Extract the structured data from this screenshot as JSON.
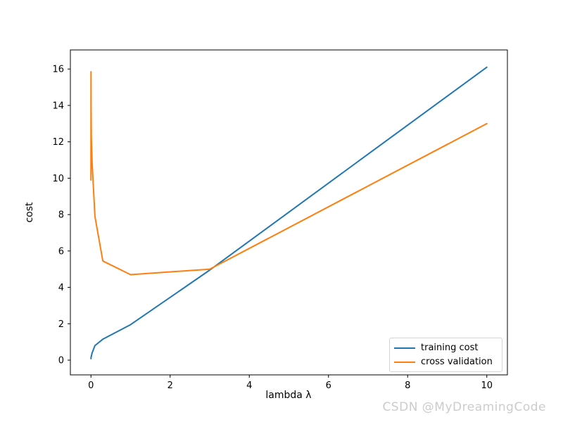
{
  "watermark": {
    "text": "CSDN @MyDreamingCode",
    "color": "#cccccc"
  },
  "chart_data": {
    "type": "line",
    "title": "",
    "xlabel": "lambda λ",
    "ylabel": "cost",
    "x": [
      0,
      0.001,
      0.003,
      0.01,
      0.03,
      0.1,
      0.3,
      1,
      3,
      10
    ],
    "series": [
      {
        "name": "training cost",
        "color": "#1f77b4",
        "values": [
          0.08,
          0.11,
          0.15,
          0.22,
          0.4,
          0.8,
          1.15,
          1.95,
          4.95,
          16.1
        ]
      },
      {
        "name": "cross validation",
        "color": "#ff7f0e",
        "values": [
          9.9,
          15.85,
          13.9,
          12.2,
          10.8,
          7.9,
          5.45,
          4.7,
          5.0,
          13.0
        ]
      }
    ],
    "xlim": [
      -0.52,
      10.52
    ],
    "ylim": [
      -0.81,
      17.05
    ],
    "xticks": [
      0,
      2,
      4,
      6,
      8,
      10
    ],
    "yticks": [
      0,
      2,
      4,
      6,
      8,
      10,
      12,
      14,
      16
    ],
    "grid": false,
    "legend_position": "lower right",
    "axis_color": "#000000",
    "background_color": "#ffffff"
  }
}
